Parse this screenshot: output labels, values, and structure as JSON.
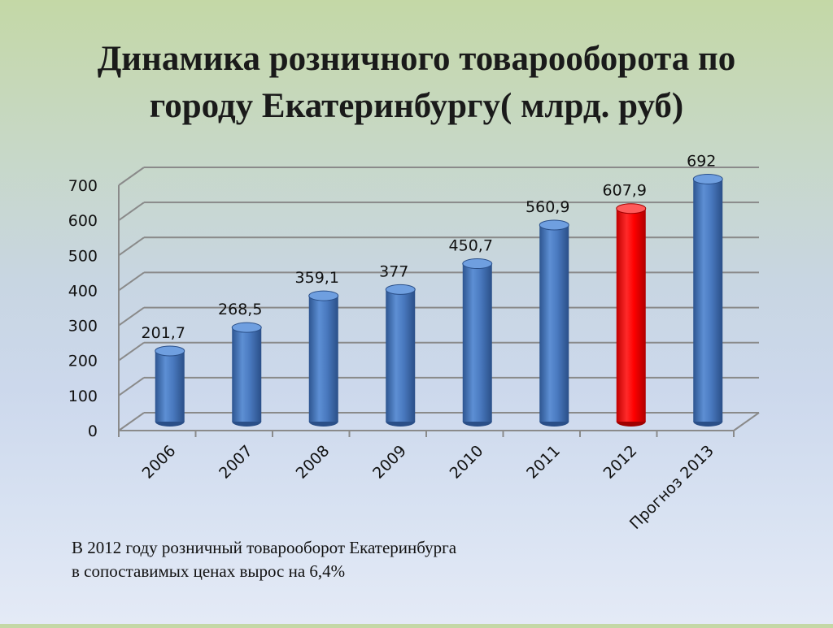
{
  "slide": {
    "title": "Динамика розничного товарооборота по городу Екатеринбургу( млрд. руб)",
    "caption_line1": "В 2012 году розничный товарооборот Екатеринбурга",
    "caption_line2": "в сопоставимых ценах вырос на 6,4%"
  },
  "chart_data": {
    "type": "bar",
    "style": "3d-cylinder",
    "title": "",
    "xlabel": "",
    "ylabel": "",
    "categories": [
      "2006",
      "2007",
      "2008",
      "2009",
      "2010",
      "2011",
      "2012",
      "Прогноз 2013"
    ],
    "values": [
      201.7,
      268.5,
      359.1,
      377,
      450.7,
      560.9,
      607.9,
      692
    ],
    "data_labels": [
      "201,7",
      "268,5",
      "359,1",
      "377",
      "450,7",
      "560,9",
      "607,9",
      "692"
    ],
    "y_ticks": [
      "0",
      "100",
      "200",
      "300",
      "400",
      "500",
      "600",
      "700"
    ],
    "ylim": [
      0,
      700
    ],
    "grid": true,
    "legend": "none",
    "colors": {
      "bar": "#4a7ac0",
      "bar_highlight": "#ff0000",
      "highlight_category": "2012",
      "grid": "#8a8a8a"
    }
  }
}
